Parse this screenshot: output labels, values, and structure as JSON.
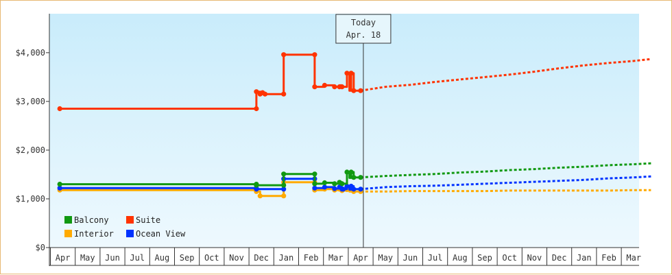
{
  "chart_data": {
    "type": "line",
    "title": "",
    "xlabel": "",
    "ylabel": "",
    "ylim": [
      0,
      4800
    ],
    "y_ticks": [
      "$0",
      "$1,000",
      "$2,000",
      "$3,000",
      "$4,000"
    ],
    "y_tick_values": [
      0,
      1000,
      2000,
      3000,
      4000
    ],
    "x_ticks": [
      "Apr",
      "May",
      "Jun",
      "Jul",
      "Aug",
      "Sep",
      "Oct",
      "Nov",
      "Dec",
      "Jan",
      "Feb",
      "Mar",
      "Apr",
      "May",
      "Jun",
      "Jul",
      "Aug",
      "Sep",
      "Oct",
      "Nov",
      "Dec",
      "Jan",
      "Feb",
      "Mar"
    ],
    "x_unit": "month index from first Apr tick",
    "xlim": [
      -0.12,
      23.7
    ],
    "today": {
      "label": "Today",
      "date": "Apr. 18",
      "x": 12.0
    },
    "grid": false,
    "legend_placement": "bottom-left",
    "series": [
      {
        "name": "Suite",
        "color": "#ff3300",
        "step_points": [
          [
            -0.12,
            2850
          ],
          [
            7.8,
            2850
          ],
          [
            7.8,
            3200
          ],
          [
            7.95,
            3200
          ],
          [
            7.95,
            3150
          ],
          [
            8.05,
            3150
          ],
          [
            8.05,
            3180
          ],
          [
            8.15,
            3180
          ],
          [
            8.15,
            3150
          ],
          [
            8.9,
            3150
          ],
          [
            8.9,
            3960
          ],
          [
            10.15,
            3960
          ],
          [
            10.15,
            3300
          ],
          [
            10.55,
            3300
          ],
          [
            10.55,
            3330
          ],
          [
            10.95,
            3330
          ],
          [
            10.95,
            3300
          ],
          [
            11.15,
            3300
          ],
          [
            11.15,
            3330
          ],
          [
            11.25,
            3330
          ],
          [
            11.25,
            3300
          ],
          [
            11.45,
            3300
          ],
          [
            11.45,
            3580
          ],
          [
            11.55,
            3580
          ],
          [
            11.55,
            3220
          ],
          [
            11.62,
            3220
          ],
          [
            11.62,
            3580
          ],
          [
            11.72,
            3580
          ],
          [
            11.72,
            3220
          ],
          [
            12.0,
            3220
          ]
        ],
        "markers": [
          [
            -0.12,
            2850
          ],
          [
            7.8,
            2850
          ],
          [
            7.8,
            3200
          ],
          [
            7.95,
            3150
          ],
          [
            8.05,
            3180
          ],
          [
            8.15,
            3150
          ],
          [
            8.9,
            3150
          ],
          [
            8.9,
            3960
          ],
          [
            10.15,
            3960
          ],
          [
            10.15,
            3300
          ],
          [
            10.55,
            3330
          ],
          [
            10.95,
            3300
          ],
          [
            11.15,
            3300
          ],
          [
            11.25,
            3300
          ],
          [
            11.45,
            3580
          ],
          [
            11.62,
            3580
          ],
          [
            11.72,
            3220
          ],
          [
            12.0,
            3220
          ]
        ],
        "forecast": [
          [
            12.0,
            3220
          ],
          [
            13.0,
            3300
          ],
          [
            14.0,
            3340
          ],
          [
            15.0,
            3400
          ],
          [
            16.0,
            3450
          ],
          [
            17.0,
            3500
          ],
          [
            18.0,
            3550
          ],
          [
            19.0,
            3610
          ],
          [
            20.0,
            3680
          ],
          [
            21.0,
            3740
          ],
          [
            22.0,
            3790
          ],
          [
            23.0,
            3830
          ],
          [
            23.7,
            3870
          ]
        ]
      },
      {
        "name": "Balcony",
        "color": "#119911",
        "step_points": [
          [
            -0.12,
            1300
          ],
          [
            7.8,
            1300
          ],
          [
            7.8,
            1280
          ],
          [
            8.9,
            1280
          ],
          [
            8.9,
            1510
          ],
          [
            10.15,
            1510
          ],
          [
            10.15,
            1310
          ],
          [
            10.55,
            1310
          ],
          [
            10.55,
            1330
          ],
          [
            10.95,
            1330
          ],
          [
            10.95,
            1310
          ],
          [
            11.15,
            1310
          ],
          [
            11.15,
            1340
          ],
          [
            11.25,
            1340
          ],
          [
            11.25,
            1310
          ],
          [
            11.45,
            1310
          ],
          [
            11.45,
            1550
          ],
          [
            11.55,
            1550
          ],
          [
            11.55,
            1430
          ],
          [
            11.62,
            1430
          ],
          [
            11.62,
            1550
          ],
          [
            11.72,
            1550
          ],
          [
            11.72,
            1440
          ],
          [
            12.0,
            1440
          ]
        ],
        "markers": [
          [
            -0.12,
            1300
          ],
          [
            7.8,
            1300
          ],
          [
            7.8,
            1280
          ],
          [
            8.9,
            1280
          ],
          [
            8.9,
            1510
          ],
          [
            10.15,
            1510
          ],
          [
            10.15,
            1310
          ],
          [
            10.55,
            1330
          ],
          [
            10.95,
            1310
          ],
          [
            11.15,
            1340
          ],
          [
            11.25,
            1310
          ],
          [
            11.45,
            1550
          ],
          [
            11.62,
            1550
          ],
          [
            11.72,
            1440
          ],
          [
            12.0,
            1440
          ]
        ],
        "forecast": [
          [
            12.0,
            1440
          ],
          [
            13.0,
            1470
          ],
          [
            14.0,
            1490
          ],
          [
            15.0,
            1510
          ],
          [
            16.0,
            1540
          ],
          [
            17.0,
            1560
          ],
          [
            18.0,
            1590
          ],
          [
            19.0,
            1610
          ],
          [
            20.0,
            1640
          ],
          [
            21.0,
            1660
          ],
          [
            22.0,
            1690
          ],
          [
            23.0,
            1710
          ],
          [
            23.7,
            1730
          ]
        ]
      },
      {
        "name": "Ocean View",
        "color": "#0033ff",
        "step_points": [
          [
            -0.12,
            1220
          ],
          [
            7.8,
            1220
          ],
          [
            7.8,
            1200
          ],
          [
            8.9,
            1200
          ],
          [
            8.9,
            1410
          ],
          [
            10.15,
            1410
          ],
          [
            10.15,
            1220
          ],
          [
            10.55,
            1220
          ],
          [
            10.55,
            1240
          ],
          [
            10.95,
            1240
          ],
          [
            10.95,
            1210
          ],
          [
            11.15,
            1210
          ],
          [
            11.15,
            1240
          ],
          [
            11.25,
            1240
          ],
          [
            11.25,
            1200
          ],
          [
            11.45,
            1200
          ],
          [
            11.45,
            1260
          ],
          [
            11.55,
            1260
          ],
          [
            11.55,
            1190
          ],
          [
            11.62,
            1190
          ],
          [
            11.62,
            1260
          ],
          [
            11.72,
            1260
          ],
          [
            11.72,
            1200
          ],
          [
            12.0,
            1200
          ]
        ],
        "markers": [
          [
            -0.12,
            1220
          ],
          [
            7.8,
            1220
          ],
          [
            7.8,
            1200
          ],
          [
            8.9,
            1200
          ],
          [
            8.9,
            1410
          ],
          [
            10.15,
            1410
          ],
          [
            10.15,
            1220
          ],
          [
            10.55,
            1240
          ],
          [
            10.95,
            1210
          ],
          [
            11.15,
            1240
          ],
          [
            11.25,
            1200
          ],
          [
            11.45,
            1260
          ],
          [
            11.62,
            1260
          ],
          [
            11.72,
            1200
          ],
          [
            11.3,
            1200
          ],
          [
            12.0,
            1200
          ]
        ],
        "forecast": [
          [
            12.0,
            1200
          ],
          [
            13.0,
            1240
          ],
          [
            14.0,
            1260
          ],
          [
            15.0,
            1270
          ],
          [
            16.0,
            1290
          ],
          [
            17.0,
            1310
          ],
          [
            18.0,
            1330
          ],
          [
            19.0,
            1350
          ],
          [
            20.0,
            1370
          ],
          [
            21.0,
            1390
          ],
          [
            22.0,
            1420
          ],
          [
            23.0,
            1440
          ],
          [
            23.7,
            1460
          ]
        ]
      },
      {
        "name": "Interior",
        "color": "#ffaa00",
        "step_points": [
          [
            -0.12,
            1180
          ],
          [
            7.8,
            1180
          ],
          [
            7.8,
            1150
          ],
          [
            7.95,
            1150
          ],
          [
            7.95,
            1060
          ],
          [
            8.9,
            1060
          ],
          [
            8.9,
            1340
          ],
          [
            10.15,
            1340
          ],
          [
            10.15,
            1180
          ],
          [
            10.55,
            1180
          ],
          [
            10.55,
            1200
          ],
          [
            10.95,
            1200
          ],
          [
            10.95,
            1180
          ],
          [
            11.15,
            1180
          ],
          [
            11.15,
            1200
          ],
          [
            11.25,
            1200
          ],
          [
            11.25,
            1170
          ],
          [
            11.45,
            1170
          ],
          [
            11.45,
            1190
          ],
          [
            11.55,
            1190
          ],
          [
            11.55,
            1150
          ],
          [
            11.62,
            1150
          ],
          [
            11.62,
            1180
          ],
          [
            11.72,
            1180
          ],
          [
            11.72,
            1150
          ],
          [
            12.0,
            1150
          ]
        ],
        "markers": [
          [
            -0.12,
            1180
          ],
          [
            7.8,
            1180
          ],
          [
            7.8,
            1150
          ],
          [
            7.95,
            1060
          ],
          [
            8.9,
            1060
          ],
          [
            8.9,
            1340
          ],
          [
            10.15,
            1340
          ],
          [
            10.15,
            1180
          ],
          [
            10.55,
            1200
          ],
          [
            10.95,
            1180
          ],
          [
            11.15,
            1200
          ],
          [
            11.25,
            1170
          ],
          [
            11.45,
            1190
          ],
          [
            11.62,
            1180
          ],
          [
            11.72,
            1150
          ],
          [
            12.0,
            1150
          ]
        ],
        "forecast": [
          [
            12.0,
            1150
          ],
          [
            13.0,
            1150
          ],
          [
            14.0,
            1160
          ],
          [
            15.0,
            1160
          ],
          [
            16.0,
            1160
          ],
          [
            17.0,
            1160
          ],
          [
            18.0,
            1170
          ],
          [
            19.0,
            1170
          ],
          [
            20.0,
            1170
          ],
          [
            21.0,
            1170
          ],
          [
            22.0,
            1170
          ],
          [
            23.0,
            1180
          ],
          [
            23.7,
            1180
          ]
        ]
      }
    ],
    "legend": [
      {
        "name": "Balcony",
        "color": "#119911"
      },
      {
        "name": "Suite",
        "color": "#ff3300"
      },
      {
        "name": "Interior",
        "color": "#ffaa00"
      },
      {
        "name": "Ocean View",
        "color": "#0033ff"
      }
    ]
  }
}
